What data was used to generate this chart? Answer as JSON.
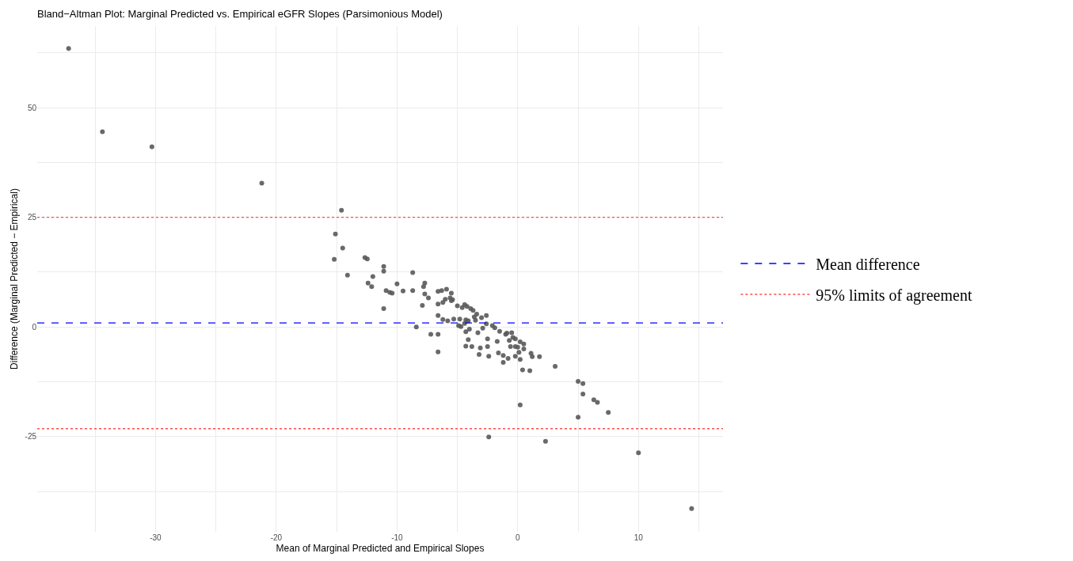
{
  "chart_data": {
    "type": "scatter",
    "title": "Bland−Altman Plot: Marginal Predicted vs. Empirical eGFR Slopes (Parsimonious Model)",
    "xlabel": "Mean of Marginal Predicted and Empirical Slopes",
    "ylabel": "Difference (Marginal Predicted − Empirical)",
    "xlim": [
      -39.8,
      17.0
    ],
    "ylim": [
      -46.7,
      68.6
    ],
    "xticks": [
      {
        "value": -35,
        "label": null
      },
      -30,
      {
        "value": -25,
        "label": null
      },
      -20,
      {
        "value": -15,
        "label": null
      },
      -10,
      {
        "value": -5,
        "label": null
      },
      0,
      {
        "value": 5,
        "label": null
      },
      10,
      {
        "value": 15,
        "label": null
      }
    ],
    "yticks": [
      {
        "value": -37.5,
        "label": null
      },
      -25,
      {
        "value": -12.5,
        "label": null
      },
      0,
      {
        "value": 12.5,
        "label": null
      },
      25,
      {
        "value": 37.5,
        "label": null
      },
      50,
      {
        "value": 62.5,
        "label": null
      }
    ],
    "grid": true,
    "marker": "circle",
    "legend": "right",
    "series": [
      {
        "color": "#595959",
        "x": [
          -37.2,
          -34.4,
          -30.3,
          -21.2,
          -14.6,
          -15.1,
          -14.5,
          -15.2,
          -14.1,
          -12.66,
          -12.46,
          -11.1,
          -11.1,
          -12.0,
          -12.4,
          -12.1,
          -10.9,
          -10.6,
          -10.4,
          -10.0,
          -11.1,
          -9.5,
          -8.7,
          -8.7,
          -7.7,
          -7.8,
          -7.7,
          -7.4,
          -7.9,
          -8.4,
          -7.2,
          -6.6,
          -6.6,
          -6.6,
          -6.6,
          -6.6,
          -6.3,
          -5.9,
          -5.5,
          -6.2,
          -6.0,
          -5.6,
          -5.5,
          -5.4,
          -6.2,
          -5.8,
          -5.3,
          -4.8,
          -5.0,
          -4.6,
          -4.4,
          -4.2,
          -3.9,
          -3.7,
          -4.9,
          -4.7,
          -4.4,
          -4.3,
          -4.1,
          -4.3,
          -4.0,
          -4.1,
          -4.3,
          -3.8,
          -3.6,
          -3.5,
          -3.4,
          -3.3,
          -3.2,
          -3.1,
          -3.0,
          -2.6,
          -2.6,
          -2.9,
          -2.5,
          -2.5,
          -2.4,
          -2.1,
          -1.9,
          -1.5,
          -1.6,
          -1.2,
          -1.2,
          -0.8,
          -1.7,
          -1.0,
          -0.9,
          -0.5,
          -0.7,
          -0.4,
          -0.2,
          -0.6,
          -0.2,
          0.0,
          -0.2,
          0.1,
          0.2,
          0.2,
          0.5,
          0.5,
          0.4,
          1.0,
          1.1,
          1.2,
          1.8,
          3.1,
          5.0,
          5.4,
          5.4,
          6.3,
          6.6,
          7.5,
          5.0,
          0.2,
          -2.4,
          2.3,
          10.0,
          14.4
        ],
        "values": [
          63.5,
          44.5,
          41.1,
          32.8,
          26.6,
          21.2,
          18.0,
          15.4,
          11.8,
          15.8,
          15.5,
          13.8,
          12.7,
          11.5,
          10.0,
          9.2,
          8.3,
          7.9,
          7.7,
          9.8,
          4.2,
          8.2,
          8.3,
          12.4,
          10.0,
          9.2,
          7.5,
          6.6,
          4.9,
          0.0,
          -1.7,
          -1.7,
          -5.7,
          2.6,
          5.2,
          8.1,
          8.3,
          8.6,
          7.7,
          5.6,
          6.3,
          6.6,
          6.0,
          6.2,
          1.7,
          1.4,
          1.8,
          1.8,
          4.8,
          4.4,
          5.1,
          4.7,
          4.2,
          3.8,
          0.3,
          0.1,
          0.8,
          1.6,
          1.4,
          -1.1,
          -0.5,
          -2.9,
          -4.4,
          -4.5,
          2.3,
          1.5,
          2.9,
          -1.3,
          -6.3,
          -4.8,
          2.1,
          2.6,
          0.7,
          -0.3,
          -2.7,
          -4.5,
          -6.7,
          0.3,
          -0.2,
          -1.0,
          -5.9,
          -6.5,
          -8.1,
          -7.2,
          -3.3,
          -1.7,
          -1.4,
          -1.3,
          -3.1,
          -2.4,
          -2.7,
          -4.5,
          -4.5,
          -4.6,
          -6.7,
          -5.8,
          -7.4,
          -3.4,
          -3.9,
          -5.0,
          -9.8,
          -10.0,
          -6.0,
          -6.8,
          -6.8,
          -9.0,
          -12.4,
          -12.9,
          -15.3,
          -16.6,
          -17.2,
          -19.5,
          -20.6,
          -17.8,
          -25.1,
          -26.1,
          -28.7,
          -41.4
        ]
      }
    ],
    "ref_lines": [
      {
        "axis": "y",
        "value": 0.9,
        "label": "Mean difference",
        "color": "#0000ff",
        "line_style": "dashed"
      },
      {
        "axis": "y",
        "value": 25.0,
        "label": "95% limits of agreement",
        "color": "#ff4d4d",
        "line_style": "dotted"
      },
      {
        "axis": "y",
        "value": -23.2,
        "color": "#ff4d4d",
        "line_style": "dotted"
      }
    ]
  }
}
